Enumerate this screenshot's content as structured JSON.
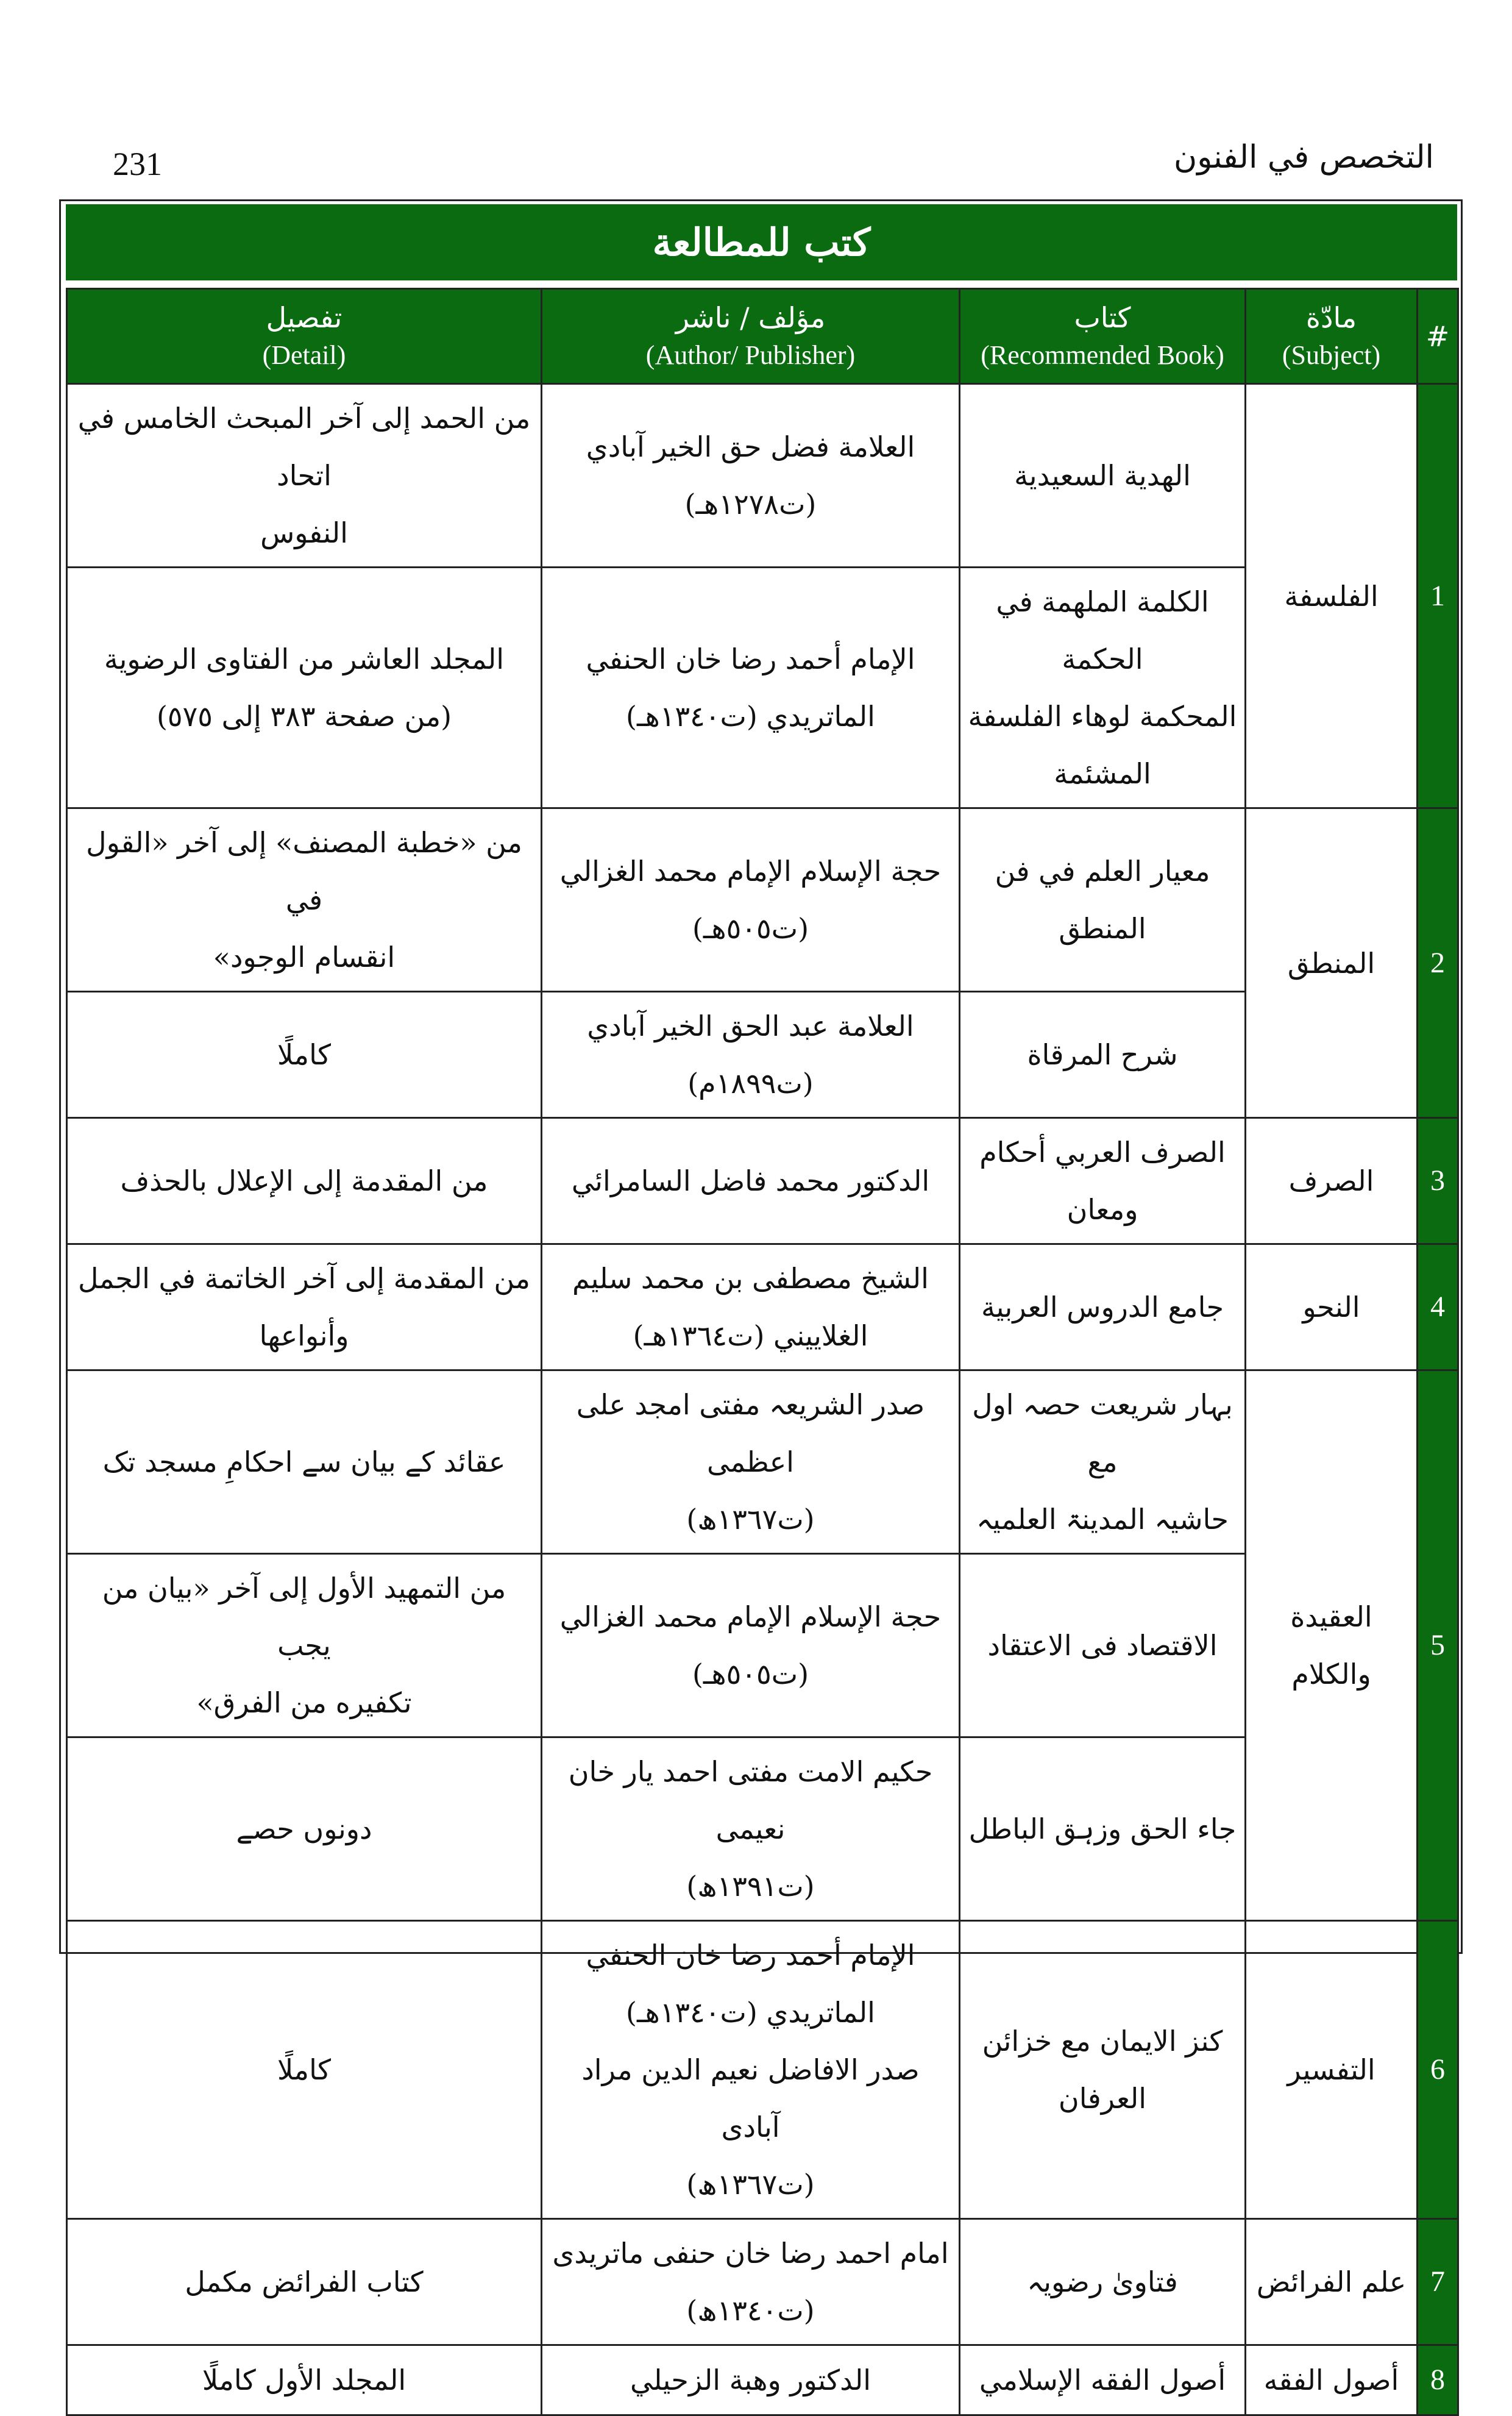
{
  "page_number": "231",
  "running_head": "التخصص في الفنون",
  "title": "كتب للمطالعة",
  "columns": [
    {
      "ar": "#",
      "en": ""
    },
    {
      "ar": "مادّة",
      "en": "(Subject)"
    },
    {
      "ar": "كتاب",
      "en": "(Recommended Book)"
    },
    {
      "ar": "مؤلف / ناشر",
      "en": "(Author/ Publisher)"
    },
    {
      "ar": "تفصيل",
      "en": "(Detail)"
    }
  ],
  "subjects": [
    {
      "num": "1",
      "subject": "الفلسفة",
      "books": [
        {
          "book": [
            "الهدية السعيدية"
          ],
          "author": [
            "العلامة فضل حق الخير آبادي",
            "(ت١٢٧٨هـ)"
          ],
          "detail": [
            "من الحمد إلى آخر المبحث الخامس في اتحاد",
            "النفوس"
          ]
        },
        {
          "book": [
            "الكلمة الملهمة في الحكمة",
            "المحكمة لوهاء الفلسفة",
            "المشئمة"
          ],
          "author": [
            "الإمام أحمد رضا خان الحنفي",
            "الماتريدي (ت١٣٤٠هـ)"
          ],
          "detail": [
            "المجلد العاشر من الفتاوى الرضوية",
            "(من صفحة ٣٨٣ إلى ٥٧٥)"
          ]
        }
      ]
    },
    {
      "num": "2",
      "subject": "المنطق",
      "books": [
        {
          "book": [
            "معيار العلم في فن المنطق"
          ],
          "author": [
            "حجة الإسلام الإمام محمد الغزالي",
            "(ت٥٠٥هـ)"
          ],
          "detail": [
            "من «خطبة المصنف» إلى آخر «القول في",
            "انقسام الوجود»"
          ]
        },
        {
          "book": [
            "شرح المرقاة"
          ],
          "author": [
            "العلامة عبد الحق الخير آبادي",
            "(ت١٨٩٩م)"
          ],
          "detail": [
            "كاملًا"
          ]
        }
      ]
    },
    {
      "num": "3",
      "subject": "الصرف",
      "books": [
        {
          "book": [
            "الصرف العربي أحكام",
            "ومعان"
          ],
          "author": [
            "الدكتور محمد فاضل السامرائي"
          ],
          "detail": [
            "من المقدمة إلى الإعلال بالحذف"
          ]
        }
      ]
    },
    {
      "num": "4",
      "subject": "النحو",
      "books": [
        {
          "book": [
            "جامع الدروس العربية"
          ],
          "author": [
            "الشيخ مصطفى بن محمد سليم",
            "الغلاييني (ت١٣٦٤هـ)"
          ],
          "detail": [
            "من المقدمة إلى آخر الخاتمة في الجمل",
            "وأنواعها"
          ]
        }
      ]
    },
    {
      "num": "5",
      "subject": "العقيدة والكلام",
      "books": [
        {
          "book": [
            "بہار شریعت حصہ اول مع",
            "حاشیہ المدینۃ العلمیہ"
          ],
          "author": [
            "صدر الشریعہ مفتی امجد علی اعظمی",
            "(ت١٣٦٧ھ)"
          ],
          "detail": [
            "عقائد کے بیان سے احکامِ مسجد تک"
          ]
        },
        {
          "book": [
            "الاقتصاد فى الاعتقاد"
          ],
          "author": [
            "حجة الإسلام الإمام محمد الغزالي",
            "(ت٥٠٥هـ)"
          ],
          "detail": [
            "من التمهيد الأول إلى آخر «بيان من يجب",
            "تكفيره من الفرق»"
          ]
        },
        {
          "book": [
            "جاء الحق وزہق الباطل"
          ],
          "author": [
            "حکیم الامت مفتی احمد یار خان نعیمی",
            "(ت١٣٩١ھ)"
          ],
          "detail": [
            "دونوں حصے"
          ]
        }
      ]
    },
    {
      "num": "6",
      "subject": "التفسير",
      "books": [
        {
          "book": [
            "کنز الایمان مع خزائن العرفان"
          ],
          "author": [
            "الإمام أحمد رضا خان الحنفي",
            "الماتريدي (ت١٣٤٠هـ)",
            "صدر الافاضل نعیم الدین مراد آبادی",
            "(ت١٣٦٧ھ)"
          ],
          "detail": [
            "كاملًا"
          ]
        }
      ]
    },
    {
      "num": "7",
      "subject": "علم الفرائض",
      "books": [
        {
          "book": [
            "فتاویٰ رضویہ"
          ],
          "author": [
            "امام احمد رضا خان حنفی ماتریدی (ت١٣٤٠ھ)"
          ],
          "detail": [
            "کتاب الفرائض مکمل"
          ]
        }
      ]
    },
    {
      "num": "8",
      "subject": "أصول الفقه",
      "books": [
        {
          "book": [
            "أصول الفقه الإسلامي"
          ],
          "author": [
            "الدكتور وهبة الزحيلي"
          ],
          "detail": [
            "المجلد الأول كاملًا"
          ]
        }
      ]
    }
  ],
  "colors": {
    "green": "#0a6b10"
  }
}
